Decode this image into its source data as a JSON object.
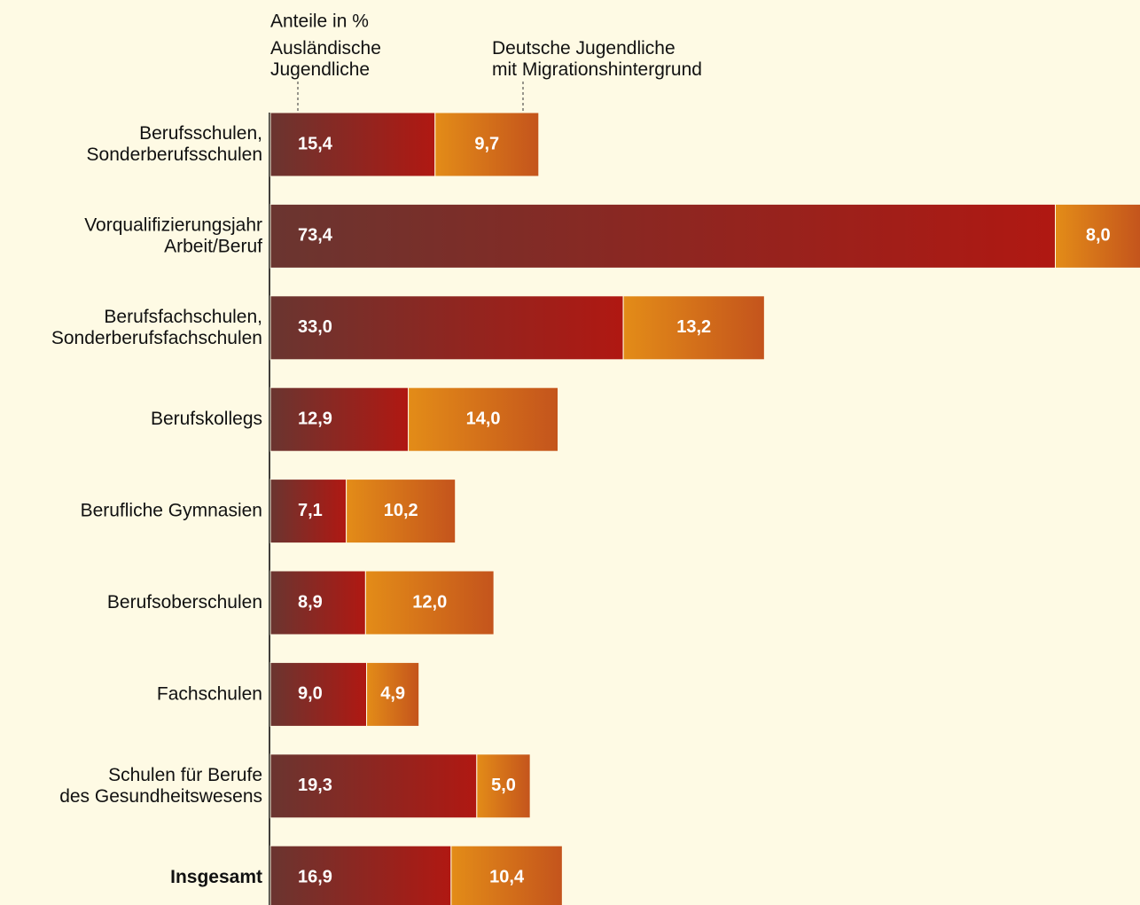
{
  "chart_data": {
    "type": "stacked_barh",
    "subtitle": "Anteile in %",
    "categories": [
      "Berufsschulen,\nSonderberufsschulen",
      "Vorqualifizierungsjahr\nArbeit/Beruf",
      "Berufsfachschulen,\nSonderberufsfachschulen",
      "Berufskollegs",
      "Berufliche Gymnasien",
      "Berufsoberschulen",
      "Fachschulen",
      "Schulen für Berufe\ndes Gesundheitswesens",
      "Insgesamt"
    ],
    "series": [
      {
        "name": "Ausländische\nJugendliche",
        "color": "#b01812",
        "values": [
          15.4,
          73.4,
          33.0,
          12.9,
          7.1,
          8.9,
          9.0,
          19.3,
          16.9
        ],
        "value_labels": [
          "15,4",
          "73,4",
          "33,0",
          "12,9",
          "7,1",
          "8,9",
          "9,0",
          "19,3",
          "16,9"
        ]
      },
      {
        "name": "Deutsche Jugendliche\nmit Migrationshintergrund",
        "color": "#c4541c",
        "values": [
          9.7,
          8.0,
          13.2,
          14.0,
          10.2,
          12.0,
          4.9,
          5.0,
          10.4
        ],
        "value_labels": [
          "9,7",
          "8,0",
          "13,2",
          "14,0",
          "10,2",
          "12,0",
          "4,9",
          "5,0",
          "10,4"
        ]
      }
    ]
  }
}
